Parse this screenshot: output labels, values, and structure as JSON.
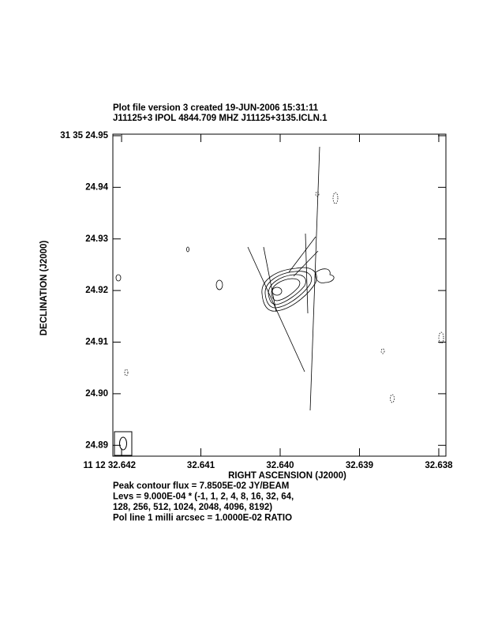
{
  "chart_data": {
    "type": "contour",
    "title_lines": [
      "Plot file version 3  created 19-JUN-2006 15:31:11",
      "J11125+3  IPOL  4844.709 MHZ  J11125+3135.ICLN.1"
    ],
    "x_label": "RIGHT ASCENSION (J2000)",
    "y_label": "DECLINATION (J2000)",
    "xlim": [
      32.64211,
      32.63791
    ],
    "ylim": [
      24.8879,
      24.9503
    ],
    "xticks": [
      {
        "value": 32.642,
        "label": "11 12 32.642"
      },
      {
        "value": 32.641,
        "label": "32.641"
      },
      {
        "value": 32.64,
        "label": "32.640"
      },
      {
        "value": 32.639,
        "label": "32.639"
      },
      {
        "value": 32.638,
        "label": "32.638"
      }
    ],
    "yticks": [
      {
        "value": 24.95,
        "label": "31 35 24.95"
      },
      {
        "value": 24.94,
        "label": "24.94"
      },
      {
        "value": 24.93,
        "label": "24.93"
      },
      {
        "value": 24.92,
        "label": "24.92"
      },
      {
        "value": 24.91,
        "label": "24.91"
      },
      {
        "value": 24.9,
        "label": "24.90"
      },
      {
        "value": 24.89,
        "label": "24.89"
      }
    ],
    "footer_lines": [
      "Peak contour flux =  7.8505E-02 JY/BEAM",
      "Levs = 9.000E-04 * (-1, 1, 2, 4, 8, 16, 32, 64,",
      "128, 256, 512, 1024, 2048, 4096, 8192)",
      "Pol line 1 milli arcsec =  1.0000E-02 RATIO"
    ]
  }
}
